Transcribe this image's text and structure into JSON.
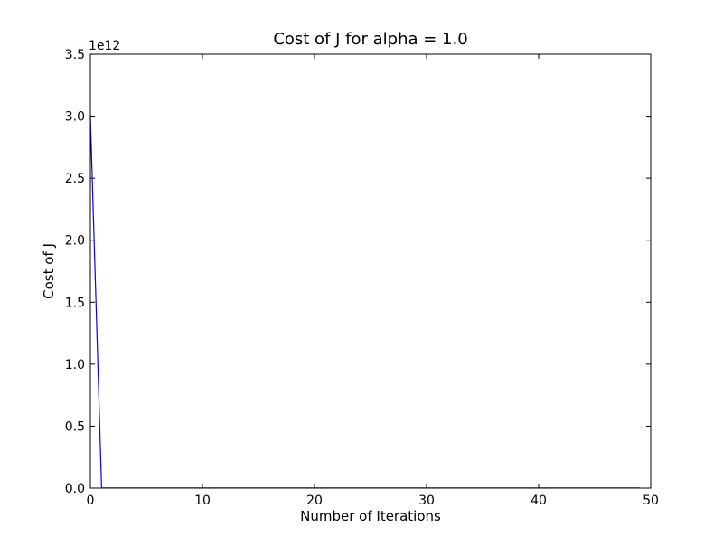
{
  "chart_data": {
    "type": "line",
    "title": "Cost of J for alpha = 1.0",
    "xlabel": "Number of Iterations",
    "ylabel": "Cost of J",
    "y_offset_label": "1e12",
    "xlim": [
      0,
      50
    ],
    "ylim": [
      0,
      3500000000000.0
    ],
    "x_ticks": [
      0,
      10,
      20,
      30,
      40,
      50
    ],
    "x_tick_labels": [
      "0",
      "10",
      "20",
      "30",
      "40",
      "50"
    ],
    "y_ticks": [
      0,
      500000000000.0,
      1000000000000.0,
      1500000000000.0,
      2000000000000.0,
      2500000000000.0,
      3000000000000.0,
      3500000000000.0
    ],
    "y_tick_labels": [
      "0.0",
      "0.5",
      "1.0",
      "1.5",
      "2.0",
      "2.5",
      "3.0",
      "3.5"
    ],
    "grid": false,
    "series": [
      {
        "color": "#0000ff",
        "x": [
          0,
          1,
          2,
          3,
          4,
          5,
          6,
          7,
          8,
          9,
          10,
          11,
          12,
          13,
          14,
          15,
          16,
          17,
          18,
          19,
          20,
          21,
          22,
          23,
          24,
          25,
          26,
          27,
          28,
          29,
          30,
          31,
          32,
          33,
          34,
          35,
          36,
          37,
          38,
          39,
          40,
          41,
          42,
          43,
          44,
          45,
          46,
          47,
          48,
          49
        ],
        "values": [
          3000000000000.0,
          1000000000.0,
          1000000000.0,
          1000000000.0,
          1000000000.0,
          1000000000.0,
          1000000000.0,
          1000000000.0,
          1000000000.0,
          1000000000.0,
          1000000000.0,
          1000000000.0,
          1000000000.0,
          1000000000.0,
          1000000000.0,
          1000000000.0,
          1000000000.0,
          1000000000.0,
          1000000000.0,
          1000000000.0,
          1000000000.0,
          1000000000.0,
          1000000000.0,
          1000000000.0,
          1000000000.0,
          1000000000.0,
          1000000000.0,
          1000000000.0,
          1000000000.0,
          1000000000.0,
          1000000000.0,
          1000000000.0,
          1000000000.0,
          1000000000.0,
          1000000000.0,
          1000000000.0,
          1000000000.0,
          1000000000.0,
          1000000000.0,
          1000000000.0,
          1000000000.0,
          1000000000.0,
          1000000000.0,
          1000000000.0,
          1000000000.0,
          1000000000.0,
          1000000000.0,
          1000000000.0,
          1000000000.0,
          1000000000.0
        ]
      }
    ]
  }
}
